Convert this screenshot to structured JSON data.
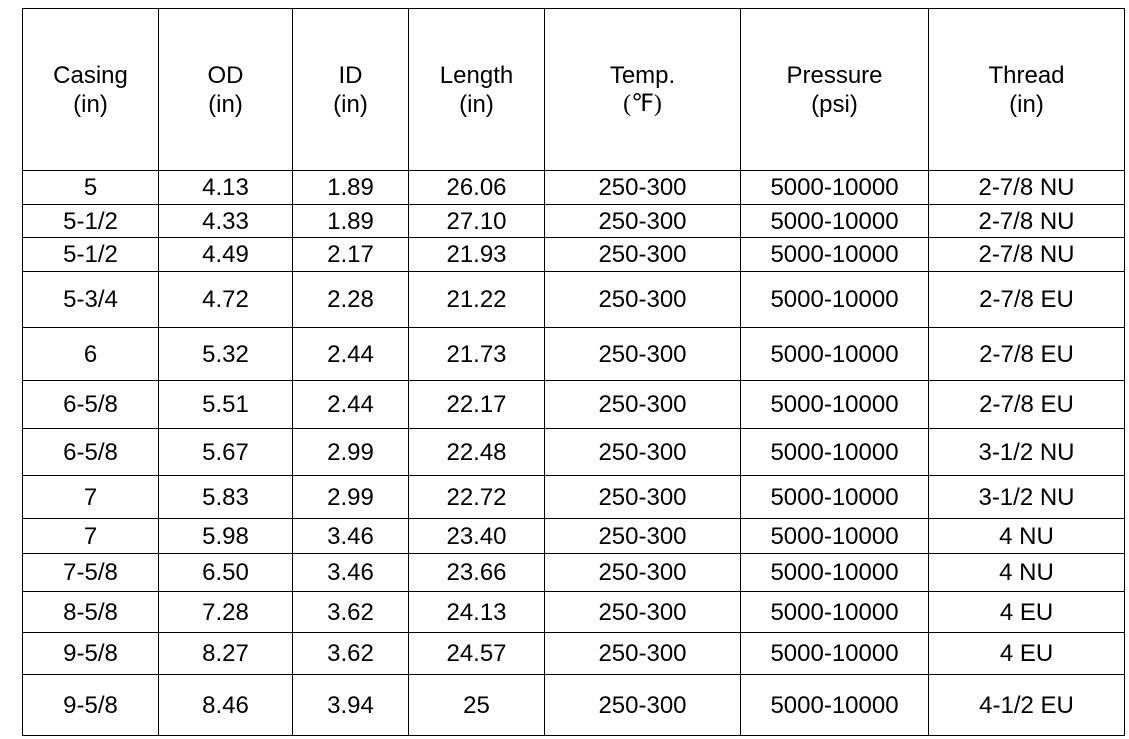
{
  "table": {
    "header": [
      [
        "Casing",
        "(in)"
      ],
      [
        "OD",
        "(in)"
      ],
      [
        "ID",
        "(in)"
      ],
      [
        "Length",
        "(in)"
      ],
      [
        "Temp.",
        "(℉)"
      ],
      [
        "Pressure",
        "(psi)"
      ],
      [
        "Thread",
        "(in)"
      ]
    ],
    "rows": [
      [
        "5",
        "4.13",
        "1.89",
        "26.06",
        "250-300",
        "5000-10000",
        "2-7/8 NU"
      ],
      [
        "5-1/2",
        "4.33",
        "1.89",
        "27.10",
        "250-300",
        "5000-10000",
        "2-7/8 NU"
      ],
      [
        "5-1/2",
        "4.49",
        "2.17",
        "21.93",
        "250-300",
        "5000-10000",
        "2-7/8 NU"
      ],
      [
        "5-3/4",
        "4.72",
        "2.28",
        "21.22",
        "250-300",
        "5000-10000",
        "2-7/8 EU"
      ],
      [
        "6",
        "5.32",
        "2.44",
        "21.73",
        "250-300",
        "5000-10000",
        "2-7/8 EU"
      ],
      [
        "6-5/8",
        "5.51",
        "2.44",
        "22.17",
        "250-300",
        "5000-10000",
        "2-7/8 EU"
      ],
      [
        "6-5/8",
        "5.67",
        "2.99",
        "22.48",
        "250-300",
        "5000-10000",
        "3-1/2 NU"
      ],
      [
        "7",
        "5.83",
        "2.99",
        "22.72",
        "250-300",
        "5000-10000",
        "3-1/2 NU"
      ],
      [
        "7",
        "5.98",
        "3.46",
        "23.40",
        "250-300",
        "5000-10000",
        "4 NU"
      ],
      [
        "7-5/8",
        "6.50",
        "3.46",
        "23.66",
        "250-300",
        "5000-10000",
        "4 NU"
      ],
      [
        "8-5/8",
        "7.28",
        "3.62",
        "24.13",
        "250-300",
        "5000-10000",
        "4 EU"
      ],
      [
        "9-5/8",
        "8.27",
        "3.62",
        "24.57",
        "250-300",
        "5000-10000",
        "4 EU"
      ],
      [
        "9-5/8",
        "8.46",
        "3.94",
        "25",
        "250-300",
        "5000-10000",
        "4-1/2 EU"
      ]
    ]
  }
}
